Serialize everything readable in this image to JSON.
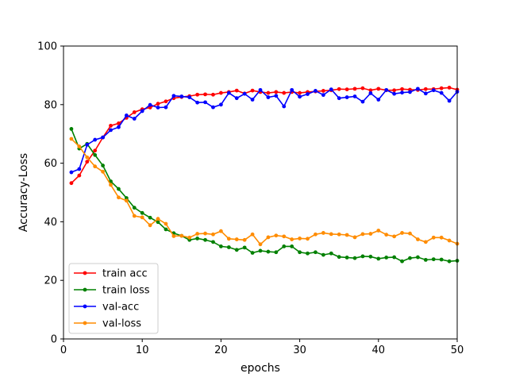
{
  "chart_data": {
    "type": "line",
    "xlabel": "epochs",
    "ylabel": "Accuracy-Loss",
    "xlim": [
      0,
      50
    ],
    "ylim": [
      0,
      100
    ],
    "xticks": [
      0,
      10,
      20,
      30,
      40,
      50
    ],
    "yticks": [
      0,
      20,
      40,
      60,
      80,
      100
    ],
    "grid": false,
    "legend_position": "lower-left",
    "x": [
      1,
      2,
      3,
      4,
      5,
      6,
      7,
      8,
      9,
      10,
      11,
      12,
      13,
      14,
      15,
      16,
      17,
      18,
      19,
      20,
      21,
      22,
      23,
      24,
      25,
      26,
      27,
      28,
      29,
      30,
      31,
      32,
      33,
      34,
      35,
      36,
      37,
      38,
      39,
      40,
      41,
      42,
      43,
      44,
      45,
      46,
      47,
      48,
      49,
      50
    ],
    "series": [
      {
        "name": "train acc",
        "color": "#ff0000",
        "values": [
          53.2,
          55.8,
          60.5,
          64.3,
          68.8,
          72.8,
          73.6,
          75.5,
          77.4,
          78.4,
          79.0,
          80.3,
          81.1,
          82.2,
          82.6,
          82.9,
          83.4,
          83.5,
          83.4,
          84.0,
          84.3,
          84.8,
          83.8,
          84.8,
          84.3,
          84.0,
          84.3,
          84.0,
          84.3,
          84.0,
          84.3,
          84.5,
          84.7,
          84.9,
          85.3,
          85.2,
          85.4,
          85.6,
          84.9,
          85.4,
          84.9,
          84.9,
          85.3,
          85.1,
          85.0,
          85.3,
          85.3,
          85.6,
          85.8,
          85.1
        ]
      },
      {
        "name": "train loss",
        "color": "#008000",
        "values": [
          71.7,
          65.0,
          66.6,
          62.8,
          59.2,
          53.8,
          51.2,
          48.1,
          44.8,
          43.0,
          41.4,
          39.9,
          37.4,
          36.1,
          35.2,
          33.8,
          34.3,
          33.8,
          33.1,
          31.6,
          31.3,
          30.4,
          31.2,
          29.4,
          30.1,
          29.8,
          29.6,
          31.6,
          31.6,
          29.6,
          29.2,
          29.6,
          28.7,
          29.2,
          28.0,
          27.8,
          27.6,
          28.2,
          28.1,
          27.4,
          27.8,
          27.9,
          26.5,
          27.6,
          27.9,
          27.0,
          27.2,
          27.1,
          26.5,
          26.7
        ]
      },
      {
        "name": "val-acc",
        "color": "#0000ff",
        "values": [
          56.9,
          58.0,
          66.3,
          68.0,
          68.8,
          71.3,
          72.3,
          76.3,
          75.2,
          77.8,
          79.9,
          79.0,
          79.1,
          83.0,
          82.8,
          82.5,
          80.7,
          80.8,
          79.1,
          80.0,
          84.0,
          82.2,
          83.7,
          81.7,
          85.0,
          82.5,
          83.0,
          79.4,
          85.0,
          82.7,
          83.6,
          84.7,
          83.3,
          85.2,
          82.2,
          82.5,
          82.8,
          81.0,
          83.9,
          81.7,
          85.0,
          83.7,
          84.1,
          84.3,
          85.4,
          83.8,
          84.9,
          84.0,
          81.3,
          84.4
        ]
      },
      {
        "name": "val-loss",
        "color": "#ff8c00",
        "values": [
          68.3,
          65.7,
          62.0,
          58.9,
          57.1,
          52.6,
          48.3,
          47.2,
          42.0,
          41.5,
          38.8,
          41.0,
          39.3,
          35.1,
          35.2,
          34.6,
          35.9,
          36.0,
          35.7,
          36.8,
          34.2,
          34.0,
          33.8,
          35.7,
          32.3,
          34.7,
          35.3,
          35.0,
          34.0,
          34.3,
          34.2,
          35.7,
          36.2,
          35.8,
          35.7,
          35.5,
          34.7,
          35.8,
          35.9,
          37.0,
          35.6,
          35.0,
          36.2,
          36.0,
          34.0,
          33.1,
          34.6,
          34.6,
          33.6,
          32.5
        ]
      }
    ]
  }
}
